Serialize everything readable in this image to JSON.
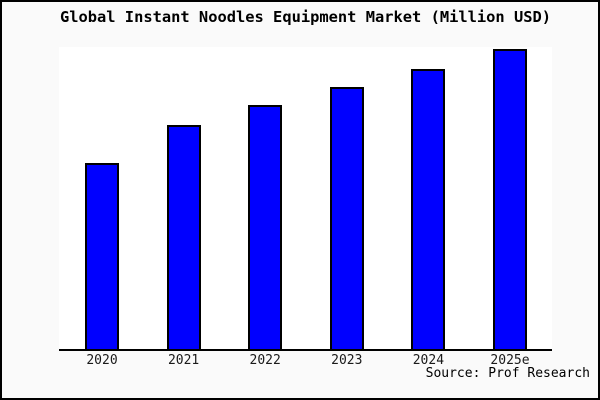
{
  "chart_data": {
    "type": "bar",
    "title": "Global Instant Noodles Equipment Market (Million USD)",
    "unit": "Million USD",
    "categories": [
      "2020",
      "2021",
      "2022",
      "2023",
      "2024",
      "2025e"
    ],
    "values_relative_pct_of_max": [
      62,
      74.7,
      81.3,
      87.3,
      93.3,
      100
    ],
    "xlabel": "",
    "ylabel": "",
    "y_axis_labeled": false,
    "grid": false,
    "legend": false,
    "bar_color": "#0000ff",
    "bar_edge_color": "#000000",
    "plot_background": "#ffffff",
    "figure_background": "#fafafa",
    "frame_color": "#000000",
    "source_note": "Source: Prof Research"
  }
}
